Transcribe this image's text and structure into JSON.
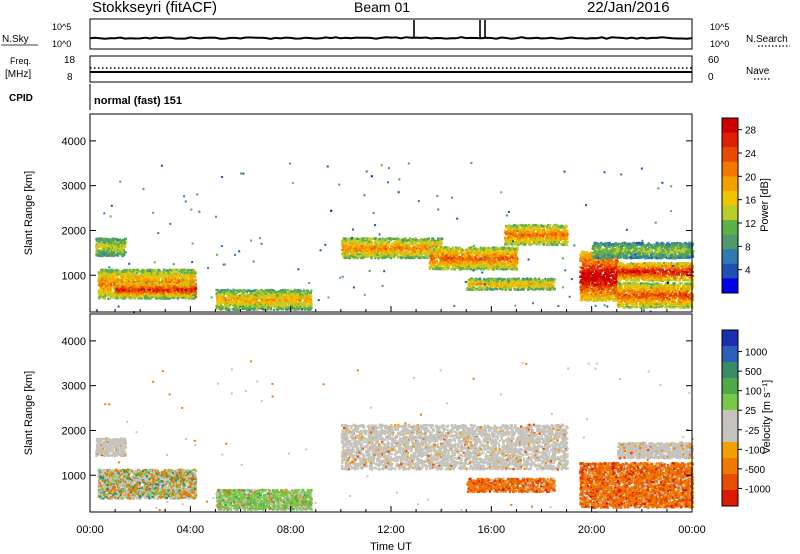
{
  "header": {
    "station": "Stokkseyri (fitACF)",
    "beam": "Beam 01",
    "date": "22/Jan/2016"
  },
  "strip": {
    "nsky_label": "N.Sky",
    "nsky_ticks": [
      "10^5",
      "10^0"
    ],
    "nsearch_label": "N.Search",
    "nsearch_ticks": [
      "10^5",
      "10^0"
    ],
    "freq_label": "Freq.",
    "freq_unit": "[MHz]",
    "freq_ticks": [
      "18",
      "8"
    ],
    "nave_label": "Nave",
    "nave_ticks": [
      "60",
      "0"
    ],
    "cpid_label": "CPID",
    "cpid_text": "normal (fast) 151"
  },
  "colors": {
    "power_scale": [
      "#0000e6",
      "#1f4fb0",
      "#2f7ab0",
      "#4e9a6a",
      "#5fb04a",
      "#b8cc2a",
      "#f2c400",
      "#f2a000",
      "#f07800",
      "#e84b00",
      "#dd2000",
      "#cc0000"
    ],
    "velocity_scale": [
      "#1a2fb0",
      "#2a60b8",
      "#3a8a6a",
      "#4fa84a",
      "#78c84a",
      "#c4c4bc",
      "#c4c4bc",
      "#f2a000",
      "#f07a00",
      "#e84d00",
      "#dd1a00"
    ],
    "gray_scatter": "#c4c4bc"
  },
  "chart_data": [
    {
      "type": "heatmap",
      "name": "power",
      "ylabel": "Slant Range [km]",
      "xlabel": "",
      "ylim": [
        180,
        4600
      ],
      "yticks": [
        "1000",
        "2000",
        "3000",
        "4000"
      ],
      "xticks": [],
      "colorbar": {
        "label": "Power [dB]",
        "ticks": [
          "4",
          "8",
          "12",
          "16",
          "20",
          "24",
          "28"
        ],
        "range": [
          0,
          30
        ]
      },
      "regions": [
        {
          "t0": 0.2,
          "t1": 1.4,
          "r0": 1450,
          "r1": 1850,
          "v": 14
        },
        {
          "t0": 0.3,
          "t1": 4.2,
          "r0": 500,
          "r1": 1150,
          "v": 20
        },
        {
          "t0": 1.0,
          "t1": 4.2,
          "r0": 550,
          "r1": 850,
          "v": 25
        },
        {
          "t0": 5.0,
          "t1": 8.8,
          "r0": 250,
          "r1": 700,
          "v": 17
        },
        {
          "t0": 10.0,
          "t1": 14.0,
          "r0": 1400,
          "r1": 1850,
          "v": 19
        },
        {
          "t0": 13.5,
          "t1": 17.0,
          "r0": 1150,
          "r1": 1650,
          "v": 21
        },
        {
          "t0": 16.5,
          "t1": 19.0,
          "r0": 1700,
          "r1": 2150,
          "v": 20
        },
        {
          "t0": 15.0,
          "t1": 18.5,
          "r0": 700,
          "r1": 950,
          "v": 17
        },
        {
          "t0": 19.5,
          "t1": 21.0,
          "r0": 450,
          "r1": 1550,
          "v": 28
        },
        {
          "t0": 21.0,
          "t1": 24.0,
          "r0": 900,
          "r1": 1300,
          "v": 25
        },
        {
          "t0": 21.0,
          "t1": 24.0,
          "r0": 300,
          "r1": 850,
          "v": 22
        },
        {
          "t0": 20.0,
          "t1": 24.0,
          "r0": 1400,
          "r1": 1750,
          "v": 12
        }
      ]
    },
    {
      "type": "heatmap",
      "name": "velocity",
      "ylabel": "Slant Range [km]",
      "xlabel": "Time UT",
      "ylim": [
        180,
        4600
      ],
      "yticks": [
        "1000",
        "2000",
        "3000",
        "4000"
      ],
      "xticks": [
        "00:00",
        "04:00",
        "08:00",
        "12:00",
        "16:00",
        "20:00",
        "00:00"
      ],
      "colorbar": {
        "label": "Velocity [m s⁻¹]",
        "ticks": [
          "1000",
          "500",
          "100",
          "25",
          "-25",
          "-100",
          "-500",
          "-1000"
        ]
      },
      "regions": [
        {
          "t0": 0.2,
          "t1": 1.4,
          "r0": 1450,
          "r1": 1850,
          "kind": "gray"
        },
        {
          "t0": 0.3,
          "t1": 4.2,
          "r0": 500,
          "r1": 1150,
          "kind": "mixed"
        },
        {
          "t0": 5.0,
          "t1": 8.8,
          "r0": 250,
          "r1": 700,
          "kind": "green"
        },
        {
          "t0": 10.0,
          "t1": 19.0,
          "r0": 1150,
          "r1": 2150,
          "kind": "gray"
        },
        {
          "t0": 15.0,
          "t1": 18.5,
          "r0": 650,
          "r1": 950,
          "kind": "orange"
        },
        {
          "t0": 19.5,
          "t1": 24.0,
          "r0": 300,
          "r1": 1300,
          "kind": "orange"
        },
        {
          "t0": 21.0,
          "t1": 24.0,
          "r0": 1400,
          "r1": 1750,
          "kind": "gray"
        }
      ]
    }
  ],
  "x_axis": {
    "label": "Time UT",
    "range_hours": [
      0,
      24
    ]
  }
}
